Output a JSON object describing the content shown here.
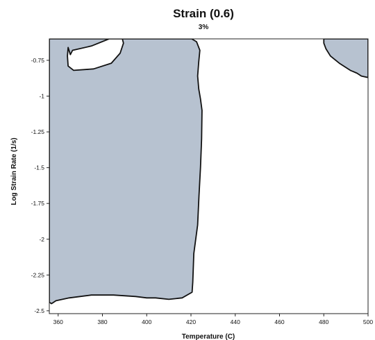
{
  "chart_data": {
    "type": "contour",
    "title": "Strain (0.6)",
    "subtitle": "3%",
    "xlabel": "Temperature (C)",
    "ylabel": "Log Strain Rate (1/s)",
    "xlim": [
      356,
      500
    ],
    "ylim": [
      -2.52,
      -0.6
    ],
    "x_ticks": [
      360,
      380,
      400,
      420,
      440,
      460,
      480,
      500
    ],
    "x_tick_labels": [
      "360",
      "380",
      "400",
      "420",
      "440",
      "460",
      "480",
      "500"
    ],
    "y_ticks": [
      -0.75,
      -1,
      -1.25,
      -1.5,
      -1.75,
      -2,
      -2.25,
      -2.5
    ],
    "y_tick_labels": [
      "-0.75",
      "-1",
      "-1.25",
      "-1.5",
      "-1.75",
      "-2",
      "-2.25",
      "-2.5"
    ],
    "fill_color": "#b7c2d0",
    "outline_color": "#111111",
    "grid": false,
    "regions": [
      {
        "name": "left-region",
        "boundary": [
          [
            356,
            -0.6
          ],
          [
            420.3,
            -0.6
          ],
          [
            422.5,
            -0.62
          ],
          [
            424,
            -0.68
          ],
          [
            423.5,
            -0.76
          ],
          [
            423,
            -0.86
          ],
          [
            423.5,
            -0.95
          ],
          [
            424.3,
            -1.02
          ],
          [
            425,
            -1.1
          ],
          [
            424.8,
            -1.3
          ],
          [
            424.3,
            -1.5
          ],
          [
            423.6,
            -1.7
          ],
          [
            423,
            -1.9
          ],
          [
            421.3,
            -2.1
          ],
          [
            420.8,
            -2.3
          ],
          [
            420.5,
            -2.37
          ],
          [
            416,
            -2.41
          ],
          [
            410,
            -2.42
          ],
          [
            404,
            -2.41
          ],
          [
            400,
            -2.41
          ],
          [
            395,
            -2.4
          ],
          [
            385,
            -2.39
          ],
          [
            375,
            -2.39
          ],
          [
            365,
            -2.41
          ],
          [
            359,
            -2.43
          ],
          [
            357,
            -2.45
          ],
          [
            356,
            -2.44
          ],
          [
            356,
            -0.6
          ]
        ],
        "holes": [
          [
            [
              364.5,
              -0.66
            ],
            [
              365.5,
              -0.71
            ],
            [
              366.5,
              -0.68
            ],
            [
              375,
              -0.65
            ],
            [
              383,
              -0.6
            ],
            [
              389,
              -0.6
            ],
            [
              389.5,
              -0.63
            ],
            [
              388,
              -0.7
            ],
            [
              384,
              -0.77
            ],
            [
              376,
              -0.81
            ],
            [
              367,
              -0.82
            ],
            [
              364.5,
              -0.79
            ],
            [
              364.2,
              -0.72
            ],
            [
              364.5,
              -0.66
            ]
          ]
        ]
      },
      {
        "name": "right-region",
        "boundary": [
          [
            480,
            -0.6
          ],
          [
            500,
            -0.6
          ],
          [
            500,
            -0.87
          ],
          [
            497,
            -0.86
          ],
          [
            495,
            -0.84
          ],
          [
            492,
            -0.82
          ],
          [
            487,
            -0.77
          ],
          [
            483,
            -0.72
          ],
          [
            481,
            -0.67
          ],
          [
            480,
            -0.63
          ],
          [
            480,
            -0.6
          ]
        ],
        "holes": []
      }
    ]
  }
}
